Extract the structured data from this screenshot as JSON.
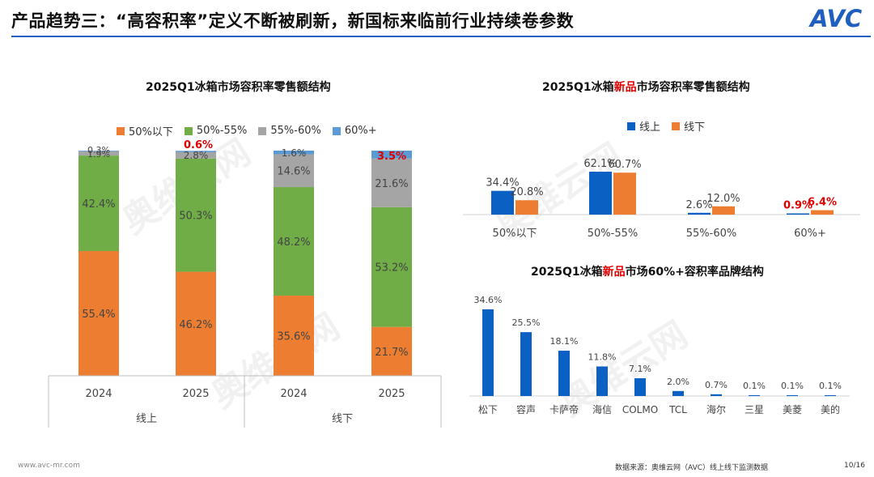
{
  "header": {
    "title": "产品趋势三：“高容积率”定义不断被刷新，新国标来临前行业持续卷参数",
    "logo_text": "AVC"
  },
  "colors": {
    "blue": "#0b61c3",
    "orange": "#ed7d31",
    "green": "#70ad47",
    "gray": "#a5a5a5",
    "lightblue": "#5b9bd5",
    "red": "#e00000",
    "accent": "#1f5fbf"
  },
  "chart_data": [
    {
      "type": "bar",
      "stacked": true,
      "title": "2025Q1冰箱市场容积率零售额结构",
      "categories": [
        "2024",
        "2025",
        "2024",
        "2025"
      ],
      "groups": [
        {
          "label": "线上",
          "span": [
            0,
            1
          ]
        },
        {
          "label": "线下",
          "span": [
            2,
            3
          ]
        }
      ],
      "series": [
        {
          "name": "50%以下",
          "values": [
            55.4,
            46.2,
            35.6,
            21.7
          ],
          "labels": [
            "55.4%",
            "46.2%",
            "35.6%",
            "21.7%"
          ]
        },
        {
          "name": "50%-55%",
          "values": [
            42.4,
            50.3,
            48.2,
            53.2
          ],
          "labels": [
            "42.4%",
            "50.3%",
            "48.2%",
            "53.2%"
          ]
        },
        {
          "name": "55%-60%",
          "values": [
            1.9,
            2.8,
            14.6,
            21.6
          ],
          "labels": [
            "1.9%",
            "2.8%",
            "14.6%",
            "21.6%"
          ]
        },
        {
          "name": "60%+",
          "values": [
            0.3,
            0.6,
            1.6,
            3.5
          ],
          "labels": [
            "0.3%",
            "0.6%",
            "1.6%",
            "3.5%"
          ],
          "highlight": [
            false,
            true,
            false,
            true
          ]
        }
      ],
      "ylim": [
        0,
        100
      ]
    },
    {
      "type": "bar",
      "title_parts": [
        "2025Q1冰箱",
        "新品",
        "市场容积率零售额结构"
      ],
      "categories": [
        "50%以下",
        "50%-55%",
        "55%-60%",
        "60%+"
      ],
      "series": [
        {
          "name": "线上",
          "values": [
            34.4,
            62.1,
            2.6,
            0.9
          ],
          "labels": [
            "34.4%",
            "62.1%",
            "2.6%",
            "0.9%"
          ],
          "highlight": [
            false,
            false,
            false,
            true
          ]
        },
        {
          "name": "线下",
          "values": [
            20.8,
            60.7,
            12.0,
            6.4
          ],
          "labels": [
            "20.8%",
            "60.7%",
            "12.0%",
            "6.4%"
          ],
          "highlight": [
            false,
            false,
            false,
            true
          ]
        }
      ],
      "ylim": [
        0,
        70
      ]
    },
    {
      "type": "bar",
      "title_parts": [
        "2025Q1冰箱",
        "新品",
        "市场60%+容积率品牌结构"
      ],
      "categories": [
        "松下",
        "容声",
        "卡萨帝",
        "海信",
        "COLMO",
        "TCL",
        "海尔",
        "三星",
        "美菱",
        "美的"
      ],
      "values": [
        34.6,
        25.5,
        18.1,
        11.8,
        7.1,
        2.0,
        0.7,
        0.1,
        0.1,
        0.1
      ],
      "labels": [
        "34.6%",
        "25.5%",
        "18.1%",
        "11.8%",
        "7.1%",
        "2.0%",
        "0.7%",
        "0.1%",
        "0.1%",
        "0.1%"
      ],
      "ylim": [
        0,
        36
      ]
    }
  ],
  "footer": {
    "website": "www.avc-mr.com",
    "source": "数据来源：奥维云网（AVC）线上线下监测数据",
    "page": "10/16"
  },
  "watermark": {
    "text": "奥维云网"
  }
}
